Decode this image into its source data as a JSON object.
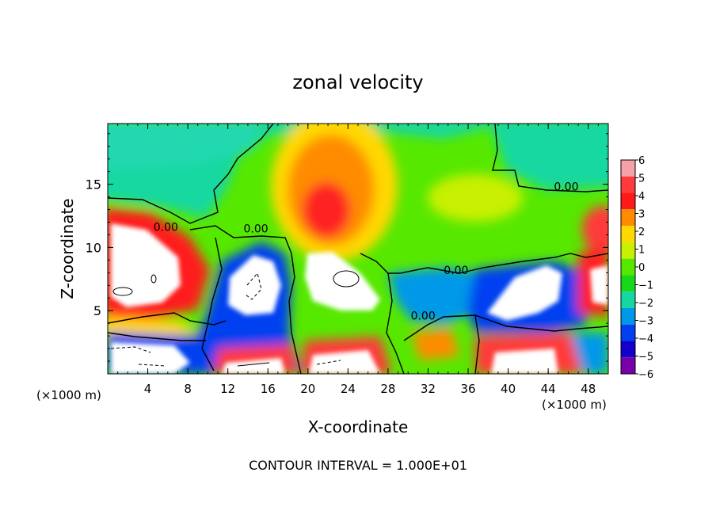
{
  "chart_data": {
    "type": "heatmap",
    "title": "zonal velocity",
    "xlabel": "X-coordinate",
    "ylabel": "Z-coordinate",
    "x_unit_note": "(×1000 m)",
    "x_unit_note_right": "(×1000 m)",
    "x_ticks": [
      4,
      8,
      12,
      16,
      20,
      24,
      28,
      32,
      36,
      40,
      44,
      48
    ],
    "y_ticks": [
      5,
      10,
      15
    ],
    "xlim": [
      0,
      50
    ],
    "ylim": [
      0,
      19.8
    ],
    "footer": "CONTOUR INTERVAL = 1.000E+01",
    "colorbar": {
      "labels": [
        "6",
        "5",
        "4",
        "3",
        "2",
        "1",
        "0",
        "−1",
        "−2",
        "−3",
        "−4",
        "−5",
        "−6"
      ],
      "colors": [
        "#f6a0a8",
        "#ff3a3a",
        "#ff1a1a",
        "#ff8c00",
        "#ffd800",
        "#c8f000",
        "#57e800",
        "#18d81a",
        "#14d8a0",
        "#0098e8",
        "#0040f0",
        "#1400c8",
        "#7800a8"
      ]
    },
    "contour_labels": [
      {
        "text": "0.00",
        "x": 5.8,
        "y": 11.3
      },
      {
        "text": "0.00",
        "x": 14.8,
        "y": 11.2
      },
      {
        "text": "0.00",
        "x": 34.8,
        "y": 7.9
      },
      {
        "text": "0.00",
        "x": 45.8,
        "y": 14.5
      },
      {
        "text": "0.00",
        "x": 31.5,
        "y": 4.3
      }
    ]
  }
}
